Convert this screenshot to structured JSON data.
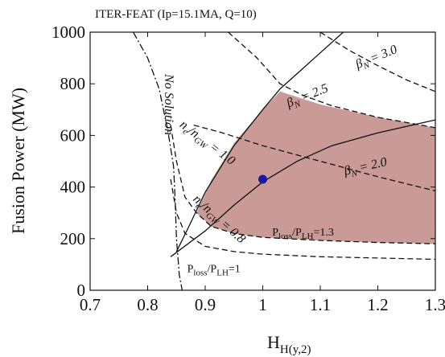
{
  "chart_data": {
    "type": "line",
    "title": "ITER-FEAT (Ip=15.1MA, Q=10)",
    "xlabel_main": "H",
    "xlabel_sub": "H(y,2)",
    "ylabel": "Fusion Power (MW)",
    "xlim": [
      0.7,
      1.3
    ],
    "ylim": [
      0,
      1000
    ],
    "x_ticks": [
      0.7,
      0.8,
      0.9,
      1.0,
      1.1,
      1.2,
      1.3
    ],
    "x_tick_labels": [
      "0.7",
      "0.8",
      "0.9",
      "1",
      "1.1",
      "1.2",
      "1.3"
    ],
    "y_ticks": [
      0,
      200,
      400,
      600,
      800,
      1000
    ],
    "y_tick_labels": [
      "0",
      "200",
      "400",
      "600",
      "800",
      "1000"
    ],
    "operating_point": {
      "x": 1.0,
      "y": 430,
      "color": "#1a1aa6"
    },
    "region_color": "#c99a96",
    "operating_region": {
      "upper": [
        [
          0.885,
          300
        ],
        [
          0.91,
          425
        ],
        [
          0.95,
          570
        ],
        [
          1.0,
          700
        ],
        [
          1.03,
          770
        ],
        [
          1.1,
          720
        ],
        [
          1.2,
          670
        ],
        [
          1.3,
          630
        ]
      ],
      "lower": [
        [
          1.3,
          180
        ],
        [
          1.2,
          185
        ],
        [
          1.1,
          193
        ],
        [
          1.0,
          205
        ],
        [
          0.95,
          220
        ],
        [
          0.91,
          248
        ],
        [
          0.885,
          300
        ]
      ]
    },
    "series": [
      {
        "name": "no-solution-boundary",
        "style": "dashdot",
        "points": [
          [
            0.775,
            1000
          ],
          [
            0.8,
            900
          ],
          [
            0.82,
            780
          ],
          [
            0.835,
            620
          ],
          [
            0.845,
            480
          ],
          [
            0.848,
            340
          ],
          [
            0.85,
            200
          ],
          [
            0.855,
            60
          ],
          [
            0.86,
            0
          ]
        ]
      },
      {
        "name": "beta-n-3.0",
        "style": "dashed",
        "points": [
          [
            1.1,
            1000
          ],
          [
            1.15,
            930
          ],
          [
            1.2,
            870
          ],
          [
            1.25,
            815
          ],
          [
            1.3,
            770
          ]
        ]
      },
      {
        "name": "beta-n-2.5",
        "style": "dashed",
        "points": [
          [
            0.94,
            1000
          ],
          [
            0.99,
            900
          ],
          [
            1.03,
            800
          ],
          [
            1.07,
            755
          ],
          [
            1.12,
            715
          ],
          [
            1.2,
            670
          ],
          [
            1.3,
            630
          ]
        ]
      },
      {
        "name": "beta-n-2.0",
        "style": "dashed",
        "points": [
          [
            0.88,
            640
          ],
          [
            0.93,
            610
          ],
          [
            1.0,
            560
          ],
          [
            1.1,
            500
          ],
          [
            1.2,
            440
          ],
          [
            1.3,
            385
          ]
        ]
      },
      {
        "name": "n-ngw-1.0",
        "style": "solid",
        "points": [
          [
            0.85,
            150
          ],
          [
            0.87,
            240
          ],
          [
            0.9,
            380
          ],
          [
            0.95,
            560
          ],
          [
            1.0,
            700
          ],
          [
            1.03,
            780
          ],
          [
            1.1,
            920
          ],
          [
            1.14,
            1000
          ]
        ]
      },
      {
        "name": "n-ngw-0.8",
        "style": "solid",
        "points": [
          [
            0.84,
            130
          ],
          [
            0.9,
            230
          ],
          [
            0.95,
            330
          ],
          [
            1.0,
            420
          ],
          [
            1.06,
            500
          ],
          [
            1.12,
            560
          ],
          [
            1.2,
            610
          ],
          [
            1.3,
            660
          ]
        ]
      },
      {
        "name": "p-loss-1.3",
        "style": "dashed",
        "points": [
          [
            0.84,
            640
          ],
          [
            0.85,
            500
          ],
          [
            0.865,
            360
          ],
          [
            0.885,
            300
          ],
          [
            0.91,
            248
          ],
          [
            0.95,
            220
          ],
          [
            1.0,
            205
          ],
          [
            1.1,
            193
          ],
          [
            1.2,
            185
          ],
          [
            1.3,
            180
          ]
        ]
      },
      {
        "name": "p-loss-1",
        "style": "dashed",
        "points": [
          [
            0.84,
            430
          ],
          [
            0.85,
            300
          ],
          [
            0.865,
            220
          ],
          [
            0.9,
            170
          ],
          [
            0.95,
            150
          ],
          [
            1.0,
            140
          ],
          [
            1.1,
            130
          ],
          [
            1.2,
            125
          ],
          [
            1.3,
            120
          ]
        ]
      }
    ],
    "annotations": [
      {
        "id": "beta3",
        "x": 1.2,
        "y": 890,
        "rotate": 22,
        "main": "β",
        "sub": "N",
        "rest": " = 3.0"
      },
      {
        "id": "beta25",
        "x": 1.08,
        "y": 740,
        "rotate": 22,
        "main": "β",
        "sub": "N",
        "rest": " = 2.5"
      },
      {
        "id": "beta2",
        "x": 1.18,
        "y": 465,
        "rotate": 13,
        "main": "β",
        "sub": "N",
        "rest": " = 2.0"
      },
      {
        "id": "ngw1",
        "x": 0.9,
        "y": 560,
        "rotate": -37,
        "main": "n",
        "sub": "e",
        "rest": "/n",
        "sub2": "GW",
        "rest2": " = 1.0"
      },
      {
        "id": "ngw08",
        "x": 0.92,
        "y": 265,
        "rotate": -42,
        "main": "n",
        "sub": "e",
        "rest": "/n",
        "sub2": "GW",
        "rest2": " = 0.8"
      },
      {
        "id": "ploss13",
        "x": 1.07,
        "y": 212,
        "rotate": 0,
        "main": "P",
        "sub": "loss",
        "rest": "/P",
        "sub2": "LH",
        "rest2": "=1.3"
      },
      {
        "id": "ploss1",
        "x": 0.915,
        "y": 70,
        "rotate": 0,
        "main": "P",
        "sub": "loss",
        "rest": "/P",
        "sub2": "LH",
        "rest2": "=1"
      },
      {
        "id": "nosol",
        "x": 0.83,
        "y": 720,
        "rotate": -90,
        "main": "No Solution"
      }
    ]
  }
}
